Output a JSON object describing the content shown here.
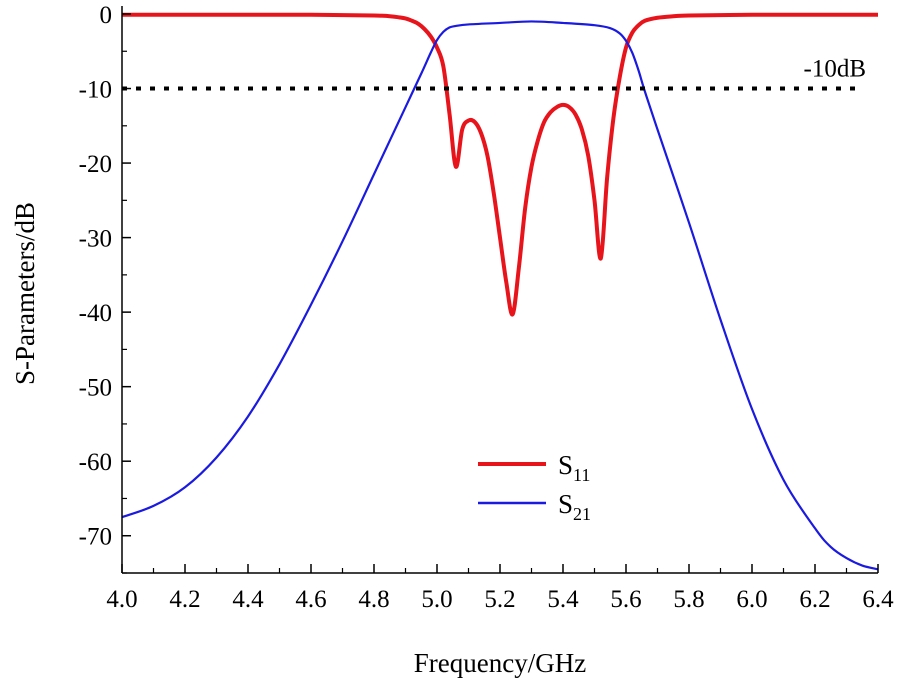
{
  "chart_data": {
    "type": "line",
    "xlabel": "Frequency/GHz",
    "ylabel": "S-Parameters/dB",
    "xlim": [
      4.0,
      6.4
    ],
    "ylim": [
      -75,
      0
    ],
    "x_ticks": [
      "4.0",
      "4.2",
      "4.4",
      "4.6",
      "4.8",
      "5.0",
      "5.2",
      "5.4",
      "5.6",
      "5.8",
      "6.0",
      "6.2",
      "6.4"
    ],
    "y_ticks": [
      "0",
      "-10",
      "-20",
      "-30",
      "-40",
      "-50",
      "-60",
      "-70"
    ],
    "x_tick_values": [
      4.0,
      4.2,
      4.4,
      4.6,
      4.8,
      5.0,
      5.2,
      5.4,
      5.6,
      5.8,
      6.0,
      6.2,
      6.4
    ],
    "y_tick_values": [
      0,
      -10,
      -20,
      -30,
      -40,
      -50,
      -60,
      -70
    ],
    "grid": false,
    "legend_position": "center-bottom",
    "reference_line": {
      "y": -10,
      "label": "-10dB",
      "color": "#000000"
    },
    "series": [
      {
        "name": "S11",
        "legend_main": "S",
        "legend_sub": "11",
        "color": "#e8141c",
        "x": [
          4.0,
          4.2,
          4.4,
          4.6,
          4.8,
          4.85,
          4.88,
          4.9,
          4.92,
          4.94,
          4.96,
          4.98,
          5.0,
          5.02,
          5.04,
          5.06,
          5.08,
          5.1,
          5.12,
          5.14,
          5.16,
          5.18,
          5.2,
          5.22,
          5.24,
          5.26,
          5.28,
          5.3,
          5.32,
          5.34,
          5.36,
          5.38,
          5.4,
          5.42,
          5.44,
          5.46,
          5.48,
          5.5,
          5.52,
          5.54,
          5.56,
          5.58,
          5.6,
          5.62,
          5.64,
          5.66,
          5.7,
          5.75,
          5.8,
          6.0,
          6.2,
          6.4
        ],
        "y": [
          -0.1,
          -0.1,
          -0.1,
          -0.1,
          -0.2,
          -0.3,
          -0.45,
          -0.6,
          -0.9,
          -1.3,
          -2.0,
          -3.0,
          -4.5,
          -7.0,
          -13.5,
          -20.5,
          -15.5,
          -14.3,
          -14.5,
          -16.0,
          -19.0,
          -24.0,
          -30.0,
          -36.0,
          -40.3,
          -34.0,
          -26.0,
          -20.5,
          -17.0,
          -14.5,
          -13.2,
          -12.5,
          -12.2,
          -12.5,
          -13.5,
          -15.5,
          -19.0,
          -25.0,
          -32.8,
          -22.0,
          -14.0,
          -8.5,
          -4.5,
          -2.5,
          -1.5,
          -0.9,
          -0.5,
          -0.3,
          -0.2,
          -0.1,
          -0.1,
          -0.1
        ]
      },
      {
        "name": "S21",
        "legend_main": "S",
        "legend_sub": "21",
        "color": "#1a1ae0",
        "x": [
          4.0,
          4.1,
          4.2,
          4.3,
          4.4,
          4.5,
          4.6,
          4.7,
          4.8,
          4.85,
          4.9,
          4.95,
          4.98,
          5.0,
          5.02,
          5.04,
          5.06,
          5.1,
          5.2,
          5.3,
          5.4,
          5.5,
          5.55,
          5.58,
          5.6,
          5.62,
          5.64,
          5.66,
          5.7,
          5.8,
          5.9,
          6.0,
          6.1,
          6.2,
          6.25,
          6.3,
          6.35,
          6.4
        ],
        "y": [
          -67.5,
          -66.0,
          -63.5,
          -59.5,
          -54.0,
          -47.0,
          -39.0,
          -30.5,
          -21.5,
          -17.0,
          -12.5,
          -8.0,
          -5.2,
          -3.5,
          -2.4,
          -1.8,
          -1.6,
          -1.4,
          -1.2,
          -1.0,
          -1.2,
          -1.5,
          -1.9,
          -2.6,
          -3.6,
          -5.2,
          -7.6,
          -10.4,
          -15.5,
          -28.0,
          -41.0,
          -53.0,
          -62.5,
          -69.0,
          -71.5,
          -73.0,
          -74.0,
          -74.5
        ]
      }
    ]
  }
}
